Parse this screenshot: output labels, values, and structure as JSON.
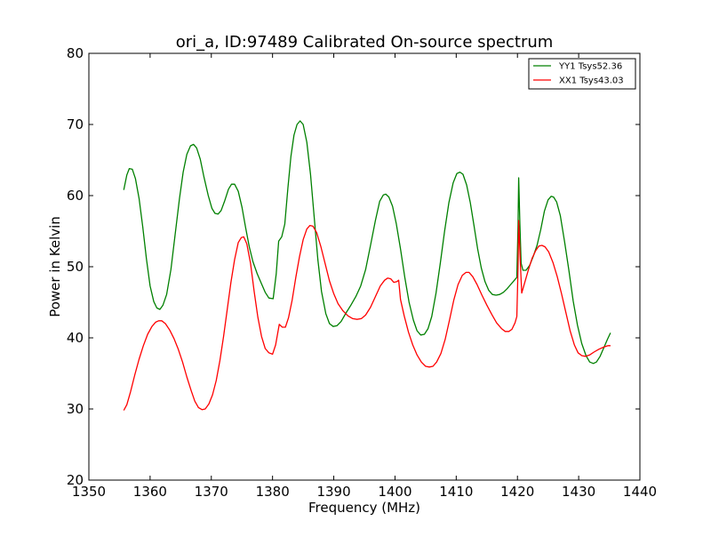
{
  "chart_data": {
    "type": "line",
    "title": "ori_a, ID:97489 Calibrated On-source spectrum",
    "xlabel": "Frequency (MHz)",
    "ylabel": "Power in Kelvin",
    "xlim": [
      1350,
      1440
    ],
    "ylim": [
      20,
      80
    ],
    "xticks": [
      "1350",
      "1360",
      "1370",
      "1380",
      "1390",
      "1400",
      "1410",
      "1420",
      "1430",
      "1440"
    ],
    "yticks": [
      "20",
      "30",
      "40",
      "50",
      "60",
      "70",
      "80"
    ],
    "grid": false,
    "legend_position": "top-right",
    "series": [
      {
        "name": "YY1 Tsys52.36",
        "color": "#008000",
        "points": [
          [
            1355.7,
            60.8
          ],
          [
            1356.2,
            62.9
          ],
          [
            1356.6,
            63.8
          ],
          [
            1357.1,
            63.7
          ],
          [
            1357.6,
            62.4
          ],
          [
            1358.2,
            59.6
          ],
          [
            1358.8,
            55.6
          ],
          [
            1359.4,
            51.1
          ],
          [
            1360.0,
            47.3
          ],
          [
            1360.6,
            45.1
          ],
          [
            1361.1,
            44.2
          ],
          [
            1361.6,
            44.0
          ],
          [
            1362.1,
            44.6
          ],
          [
            1362.7,
            46.1
          ],
          [
            1363.4,
            49.6
          ],
          [
            1364.1,
            54.6
          ],
          [
            1364.8,
            59.6
          ],
          [
            1365.4,
            63.3
          ],
          [
            1366.0,
            65.8
          ],
          [
            1366.6,
            67.0
          ],
          [
            1367.1,
            67.2
          ],
          [
            1367.6,
            66.7
          ],
          [
            1368.2,
            65.1
          ],
          [
            1368.8,
            62.6
          ],
          [
            1369.5,
            60.0
          ],
          [
            1370.1,
            58.2
          ],
          [
            1370.6,
            57.5
          ],
          [
            1371.1,
            57.4
          ],
          [
            1371.6,
            57.9
          ],
          [
            1372.2,
            59.3
          ],
          [
            1372.8,
            60.9
          ],
          [
            1373.3,
            61.6
          ],
          [
            1373.8,
            61.6
          ],
          [
            1374.4,
            60.6
          ],
          [
            1375.0,
            58.4
          ],
          [
            1375.6,
            55.5
          ],
          [
            1376.2,
            52.8
          ],
          [
            1376.8,
            50.7
          ],
          [
            1377.5,
            49.0
          ],
          [
            1378.2,
            47.6
          ],
          [
            1378.8,
            46.4
          ],
          [
            1379.4,
            45.6
          ],
          [
            1380.1,
            45.5
          ],
          [
            1380.6,
            49.0
          ],
          [
            1381.0,
            53.6
          ],
          [
            1381.5,
            54.2
          ],
          [
            1382.0,
            56.0
          ],
          [
            1382.5,
            61.0
          ],
          [
            1383.0,
            65.5
          ],
          [
            1383.5,
            68.5
          ],
          [
            1384.0,
            70.0
          ],
          [
            1384.5,
            70.5
          ],
          [
            1385.0,
            70.0
          ],
          [
            1385.6,
            67.5
          ],
          [
            1386.2,
            63.0
          ],
          [
            1386.8,
            57.0
          ],
          [
            1387.4,
            51.0
          ],
          [
            1388.0,
            46.5
          ],
          [
            1388.7,
            43.4
          ],
          [
            1389.3,
            42.0
          ],
          [
            1389.9,
            41.6
          ],
          [
            1390.5,
            41.7
          ],
          [
            1391.2,
            42.3
          ],
          [
            1392.0,
            43.5
          ],
          [
            1392.8,
            44.6
          ],
          [
            1393.6,
            45.8
          ],
          [
            1394.4,
            47.3
          ],
          [
            1395.2,
            49.6
          ],
          [
            1396.0,
            53.0
          ],
          [
            1396.8,
            56.5
          ],
          [
            1397.5,
            59.2
          ],
          [
            1398.1,
            60.1
          ],
          [
            1398.5,
            60.2
          ],
          [
            1399.0,
            59.8
          ],
          [
            1399.6,
            58.5
          ],
          [
            1400.2,
            56.1
          ],
          [
            1400.9,
            52.5
          ],
          [
            1401.6,
            48.5
          ],
          [
            1402.3,
            45.0
          ],
          [
            1403.0,
            42.5
          ],
          [
            1403.6,
            41.0
          ],
          [
            1404.2,
            40.4
          ],
          [
            1404.8,
            40.5
          ],
          [
            1405.4,
            41.3
          ],
          [
            1406.0,
            43.0
          ],
          [
            1406.7,
            46.3
          ],
          [
            1407.4,
            50.5
          ],
          [
            1408.1,
            55.0
          ],
          [
            1408.8,
            59.0
          ],
          [
            1409.5,
            61.8
          ],
          [
            1410.1,
            63.1
          ],
          [
            1410.6,
            63.3
          ],
          [
            1411.1,
            63.0
          ],
          [
            1411.7,
            61.5
          ],
          [
            1412.3,
            59.0
          ],
          [
            1412.9,
            55.8
          ],
          [
            1413.5,
            52.5
          ],
          [
            1414.1,
            49.8
          ],
          [
            1414.7,
            47.9
          ],
          [
            1415.3,
            46.7
          ],
          [
            1415.9,
            46.1
          ],
          [
            1416.5,
            46.0
          ],
          [
            1417.1,
            46.1
          ],
          [
            1417.7,
            46.4
          ],
          [
            1418.3,
            46.9
          ],
          [
            1418.9,
            47.5
          ],
          [
            1419.5,
            48.1
          ],
          [
            1419.9,
            48.5
          ],
          [
            1420.1,
            56.0
          ],
          [
            1420.2,
            62.5
          ],
          [
            1420.4,
            56.0
          ],
          [
            1420.6,
            50.5
          ],
          [
            1420.9,
            49.5
          ],
          [
            1421.4,
            49.5
          ],
          [
            1422.0,
            50.2
          ],
          [
            1422.6,
            51.5
          ],
          [
            1423.2,
            53.0
          ],
          [
            1423.8,
            55.2
          ],
          [
            1424.4,
            57.8
          ],
          [
            1425.0,
            59.4
          ],
          [
            1425.5,
            59.9
          ],
          [
            1425.9,
            59.8
          ],
          [
            1426.4,
            59.1
          ],
          [
            1427.0,
            57.2
          ],
          [
            1427.7,
            53.5
          ],
          [
            1428.4,
            49.5
          ],
          [
            1429.1,
            45.2
          ],
          [
            1429.8,
            41.8
          ],
          [
            1430.5,
            39.2
          ],
          [
            1431.2,
            37.5
          ],
          [
            1431.8,
            36.6
          ],
          [
            1432.4,
            36.4
          ],
          [
            1432.9,
            36.6
          ],
          [
            1433.5,
            37.4
          ],
          [
            1434.1,
            38.6
          ],
          [
            1434.7,
            39.8
          ],
          [
            1435.2,
            40.7
          ]
        ]
      },
      {
        "name": "XX1 Tsys43.03",
        "color": "#ff0000",
        "points": [
          [
            1355.7,
            29.8
          ],
          [
            1356.2,
            30.6
          ],
          [
            1356.8,
            32.4
          ],
          [
            1357.5,
            34.8
          ],
          [
            1358.2,
            37.0
          ],
          [
            1358.9,
            38.9
          ],
          [
            1359.6,
            40.5
          ],
          [
            1360.3,
            41.6
          ],
          [
            1360.9,
            42.2
          ],
          [
            1361.4,
            42.4
          ],
          [
            1361.9,
            42.4
          ],
          [
            1362.5,
            42.0
          ],
          [
            1363.2,
            41.1
          ],
          [
            1363.9,
            39.9
          ],
          [
            1364.6,
            38.4
          ],
          [
            1365.3,
            36.6
          ],
          [
            1366.0,
            34.5
          ],
          [
            1366.7,
            32.6
          ],
          [
            1367.3,
            31.1
          ],
          [
            1367.9,
            30.2
          ],
          [
            1368.5,
            29.9
          ],
          [
            1369.0,
            30.0
          ],
          [
            1369.6,
            30.7
          ],
          [
            1370.2,
            32.0
          ],
          [
            1370.8,
            34.0
          ],
          [
            1371.4,
            36.8
          ],
          [
            1372.0,
            40.2
          ],
          [
            1372.6,
            44.0
          ],
          [
            1373.2,
            47.8
          ],
          [
            1373.8,
            51.0
          ],
          [
            1374.4,
            53.4
          ],
          [
            1374.9,
            54.1
          ],
          [
            1375.3,
            54.2
          ],
          [
            1375.8,
            53.2
          ],
          [
            1376.4,
            50.5
          ],
          [
            1377.0,
            46.5
          ],
          [
            1377.6,
            42.9
          ],
          [
            1378.2,
            40.2
          ],
          [
            1378.8,
            38.5
          ],
          [
            1379.4,
            37.9
          ],
          [
            1380.0,
            37.7
          ],
          [
            1380.5,
            39.0
          ],
          [
            1381.1,
            41.9
          ],
          [
            1381.6,
            41.5
          ],
          [
            1382.1,
            41.5
          ],
          [
            1382.6,
            42.8
          ],
          [
            1383.2,
            45.3
          ],
          [
            1383.8,
            48.5
          ],
          [
            1384.4,
            51.4
          ],
          [
            1385.0,
            53.8
          ],
          [
            1385.6,
            55.3
          ],
          [
            1386.1,
            55.8
          ],
          [
            1386.6,
            55.7
          ],
          [
            1387.2,
            54.8
          ],
          [
            1387.9,
            52.8
          ],
          [
            1388.6,
            50.4
          ],
          [
            1389.3,
            48.0
          ],
          [
            1390.0,
            46.2
          ],
          [
            1390.7,
            44.8
          ],
          [
            1391.5,
            43.8
          ],
          [
            1392.3,
            43.1
          ],
          [
            1393.1,
            42.7
          ],
          [
            1393.8,
            42.6
          ],
          [
            1394.5,
            42.7
          ],
          [
            1395.2,
            43.2
          ],
          [
            1396.0,
            44.3
          ],
          [
            1396.8,
            45.8
          ],
          [
            1397.6,
            47.3
          ],
          [
            1398.3,
            48.1
          ],
          [
            1398.8,
            48.4
          ],
          [
            1399.3,
            48.3
          ],
          [
            1399.8,
            47.8
          ],
          [
            1400.3,
            47.9
          ],
          [
            1400.6,
            48.1
          ],
          [
            1400.9,
            45.4
          ],
          [
            1401.5,
            43.1
          ],
          [
            1402.2,
            40.8
          ],
          [
            1402.9,
            39.0
          ],
          [
            1403.6,
            37.6
          ],
          [
            1404.3,
            36.6
          ],
          [
            1405.0,
            36.0
          ],
          [
            1405.6,
            35.9
          ],
          [
            1406.2,
            36.0
          ],
          [
            1406.8,
            36.6
          ],
          [
            1407.5,
            37.8
          ],
          [
            1408.2,
            39.8
          ],
          [
            1408.9,
            42.5
          ],
          [
            1409.6,
            45.3
          ],
          [
            1410.3,
            47.5
          ],
          [
            1411.0,
            48.8
          ],
          [
            1411.6,
            49.2
          ],
          [
            1412.1,
            49.2
          ],
          [
            1412.7,
            48.6
          ],
          [
            1413.4,
            47.5
          ],
          [
            1414.2,
            46.0
          ],
          [
            1415.0,
            44.6
          ],
          [
            1415.8,
            43.3
          ],
          [
            1416.6,
            42.1
          ],
          [
            1417.4,
            41.3
          ],
          [
            1418.0,
            40.9
          ],
          [
            1418.6,
            40.9
          ],
          [
            1419.1,
            41.2
          ],
          [
            1419.6,
            42.1
          ],
          [
            1419.9,
            43.0
          ],
          [
            1420.1,
            50.0
          ],
          [
            1420.2,
            56.5
          ],
          [
            1420.5,
            50.0
          ],
          [
            1420.7,
            46.3
          ],
          [
            1421.2,
            47.8
          ],
          [
            1421.8,
            49.6
          ],
          [
            1422.4,
            51.2
          ],
          [
            1423.0,
            52.3
          ],
          [
            1423.5,
            52.9
          ],
          [
            1424.0,
            53.0
          ],
          [
            1424.5,
            52.8
          ],
          [
            1425.1,
            52.1
          ],
          [
            1425.8,
            50.6
          ],
          [
            1426.5,
            48.6
          ],
          [
            1427.2,
            46.2
          ],
          [
            1427.9,
            43.6
          ],
          [
            1428.6,
            41.0
          ],
          [
            1429.3,
            39.0
          ],
          [
            1429.9,
            37.9
          ],
          [
            1430.5,
            37.5
          ],
          [
            1431.1,
            37.4
          ],
          [
            1431.8,
            37.6
          ],
          [
            1432.5,
            38.0
          ],
          [
            1433.3,
            38.4
          ],
          [
            1434.1,
            38.7
          ],
          [
            1434.8,
            38.9
          ],
          [
            1435.2,
            38.9
          ]
        ]
      }
    ]
  }
}
